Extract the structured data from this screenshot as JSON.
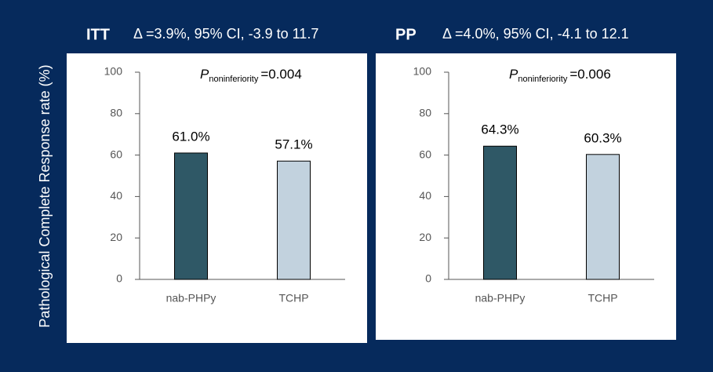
{
  "chart_data": [
    {
      "type": "bar",
      "title": "ITT",
      "subtitle": "Δ =3.9%, 95% CI, -3.9 to 11.7",
      "ylabel": "Pathological Complete Response rate (%)",
      "annotation": {
        "symbol": "P",
        "subscript": "noninferiority",
        "text": "=0.004"
      },
      "categories": [
        "nab-PHPy",
        "TCHP"
      ],
      "values": [
        61.0,
        57.1
      ],
      "value_labels": [
        "61.0%",
        "57.1%"
      ],
      "colors": [
        "#2f5866",
        "#c2d2de"
      ],
      "ylim": [
        0,
        100
      ],
      "yticks": [
        0,
        20,
        40,
        60,
        80,
        100
      ],
      "grid": false
    },
    {
      "type": "bar",
      "title": "PP",
      "subtitle": "Δ =4.0%, 95% CI, -4.1 to 12.1",
      "annotation": {
        "symbol": "P",
        "subscript": "noninferiority",
        "text": "=0.006"
      },
      "categories": [
        "nab-PHPy",
        "TCHP"
      ],
      "values": [
        64.3,
        60.3
      ],
      "value_labels": [
        "64.3%",
        "60.3%"
      ],
      "colors": [
        "#2f5866",
        "#c2d2de"
      ],
      "ylim": [
        0,
        100
      ],
      "yticks": [
        0,
        20,
        40,
        60,
        80,
        100
      ],
      "grid": false
    }
  ]
}
